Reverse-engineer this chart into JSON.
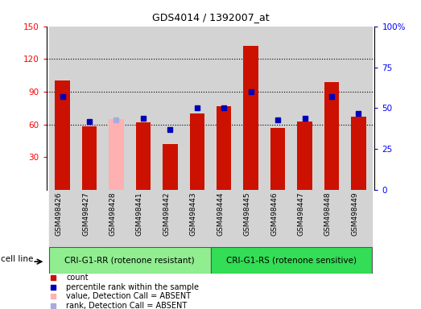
{
  "title": "GDS4014 / 1392007_at",
  "samples": [
    "GSM498426",
    "GSM498427",
    "GSM498428",
    "GSM498441",
    "GSM498442",
    "GSM498443",
    "GSM498444",
    "GSM498445",
    "GSM498446",
    "GSM498447",
    "GSM498448",
    "GSM498449"
  ],
  "counts": [
    100,
    58,
    65,
    62,
    42,
    70,
    77,
    132,
    57,
    63,
    99,
    67
  ],
  "count_absent": [
    false,
    false,
    true,
    false,
    false,
    false,
    false,
    false,
    false,
    false,
    false,
    false
  ],
  "percentile_ranks": [
    57,
    42,
    43,
    44,
    37,
    50,
    50,
    60,
    43,
    44,
    57,
    47
  ],
  "rank_absent": [
    false,
    false,
    true,
    false,
    false,
    false,
    false,
    false,
    false,
    false,
    false,
    false
  ],
  "groups": [
    "CRI-G1-RR (rotenone resistant)",
    "CRI-G1-RS (rotenone sensitive)"
  ],
  "group_colors": [
    "#90ee90",
    "#33dd55"
  ],
  "bar_color_normal": "#cc1100",
  "bar_color_absent": "#ffb0b0",
  "dot_color_normal": "#0000bb",
  "dot_color_absent": "#aaaadd",
  "ylim_left": [
    0,
    150
  ],
  "ylim_right": [
    0,
    100
  ],
  "yticks_left": [
    30,
    60,
    90,
    120,
    150
  ],
  "yticks_right": [
    0,
    25,
    50,
    75,
    100
  ],
  "ytick_labels_right": [
    "0",
    "25",
    "50",
    "75",
    "100%"
  ],
  "grid_lines": [
    60,
    90,
    120
  ],
  "cell_line_label": "cell line",
  "legend_items": [
    [
      "#cc1100",
      "count"
    ],
    [
      "#0000bb",
      "percentile rank within the sample"
    ],
    [
      "#ffb0b0",
      "value, Detection Call = ABSENT"
    ],
    [
      "#aaaadd",
      "rank, Detection Call = ABSENT"
    ]
  ]
}
